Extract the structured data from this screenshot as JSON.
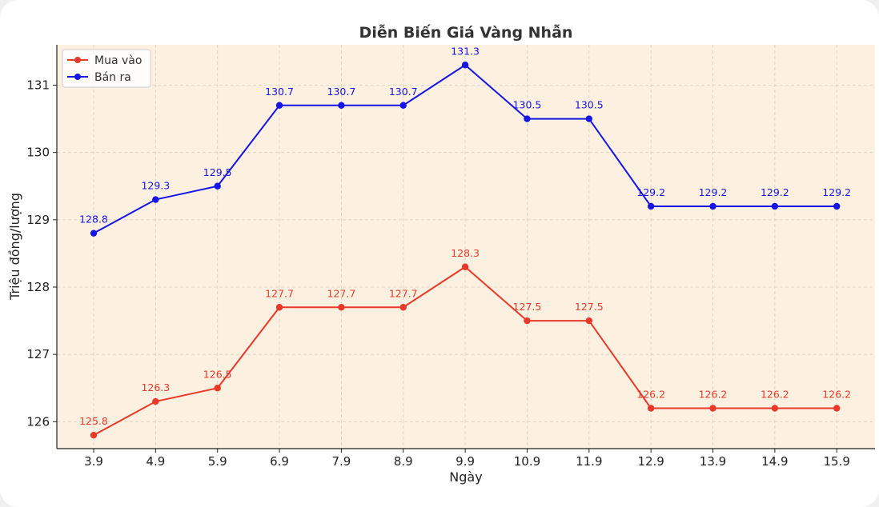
{
  "chart_data": {
    "type": "line",
    "title": "Diễn Biến Giá Vàng Nhẫn",
    "xlabel": "Ngày",
    "ylabel": "Triệu đồng/lượng",
    "categories": [
      "3.9",
      "4.9",
      "5.9",
      "6.9",
      "7.9",
      "8.9",
      "9.9",
      "10.9",
      "11.9",
      "12.9",
      "13.9",
      "14.9",
      "15.9"
    ],
    "yticks": [
      "126",
      "127",
      "128",
      "129",
      "130",
      "131"
    ],
    "ylim": [
      125.6,
      131.6
    ],
    "grid": true,
    "legend_position": "top-left",
    "background_color": "#fcf1e0",
    "series": [
      {
        "name": "Mua vào",
        "color": "#e8392a",
        "values": [
          125.8,
          126.3,
          126.5,
          127.7,
          127.7,
          127.7,
          128.3,
          127.5,
          127.5,
          126.2,
          126.2,
          126.2,
          126.2
        ],
        "labels": [
          "125.8",
          "126.3",
          "126.5",
          "127.7",
          "127.7",
          "127.7",
          "128.3",
          "127.5",
          "127.5",
          "126.2",
          "126.2",
          "126.2",
          "126.2"
        ]
      },
      {
        "name": "Bán ra",
        "color": "#1515e6",
        "values": [
          128.8,
          129.3,
          129.5,
          130.7,
          130.7,
          130.7,
          131.3,
          130.5,
          130.5,
          129.2,
          129.2,
          129.2,
          129.2
        ],
        "labels": [
          "128.8",
          "129.3",
          "129.5",
          "130.7",
          "130.7",
          "130.7",
          "131.3",
          "130.5",
          "130.5",
          "129.2",
          "129.2",
          "129.2",
          "129.2"
        ]
      }
    ]
  }
}
